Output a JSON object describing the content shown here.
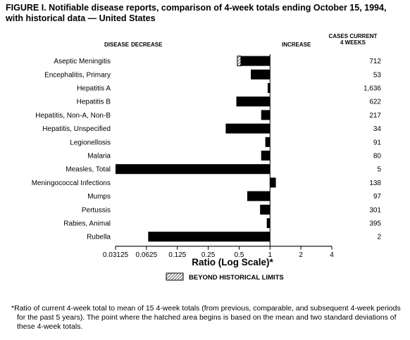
{
  "title": "FIGURE I. Notifiable disease reports, comparison of 4-week totals ending October 15, 1994, with historical data — United States",
  "headers": {
    "disease": "DISEASE",
    "decrease": "DECREASE",
    "increase": "INCREASE",
    "cases_line1": "CASES CURRENT",
    "cases_line2": "4 WEEKS"
  },
  "legend_label": "BEYOND HISTORICAL LIMITS",
  "footnote": "*Ratio of current 4-week total to mean of 15 4-week totals (from previous, comparable, and subsequent 4-week periods for the past 5 years). The point where the hatched area begins is based on the mean and two standard deviations of these 4-week totals.",
  "chart_data": {
    "type": "bar",
    "orientation": "horizontal",
    "xscale": "log2",
    "xlabel": "Ratio (Log Scale)*",
    "xlim": [
      0.03125,
      4
    ],
    "reference": 1,
    "xticks": [
      "0.03125",
      "0.0625",
      "0.125",
      "0.25",
      "0.5",
      "1",
      "2",
      "4"
    ],
    "tick_values": [
      0.03125,
      0.0625,
      0.125,
      0.25,
      0.5,
      1,
      2,
      4
    ],
    "categories": [
      "Aseptic Meningitis",
      "Encephalitis, Primary",
      "Hepatitis A",
      "Hepatitis B",
      "Hepatitis, Non-A, Non-B",
      "Hepatitis, Unspecified",
      "Legionellosis",
      "Malaria",
      "Measles, Total",
      "Meningococcal Infections",
      "Mumps",
      "Pertussis",
      "Rabies, Animal",
      "Rubella"
    ],
    "ratios": [
      0.48,
      0.65,
      0.95,
      0.47,
      0.82,
      0.37,
      0.9,
      0.82,
      0.03125,
      1.14,
      0.6,
      0.8,
      0.93,
      0.065
    ],
    "hatch_end": [
      0.52,
      null,
      null,
      null,
      null,
      null,
      null,
      null,
      null,
      null,
      null,
      null,
      null,
      null
    ],
    "cases": [
      "712",
      "53",
      "1,636",
      "622",
      "217",
      "34",
      "91",
      "80",
      "5",
      "138",
      "97",
      "301",
      "395",
      "2"
    ]
  }
}
